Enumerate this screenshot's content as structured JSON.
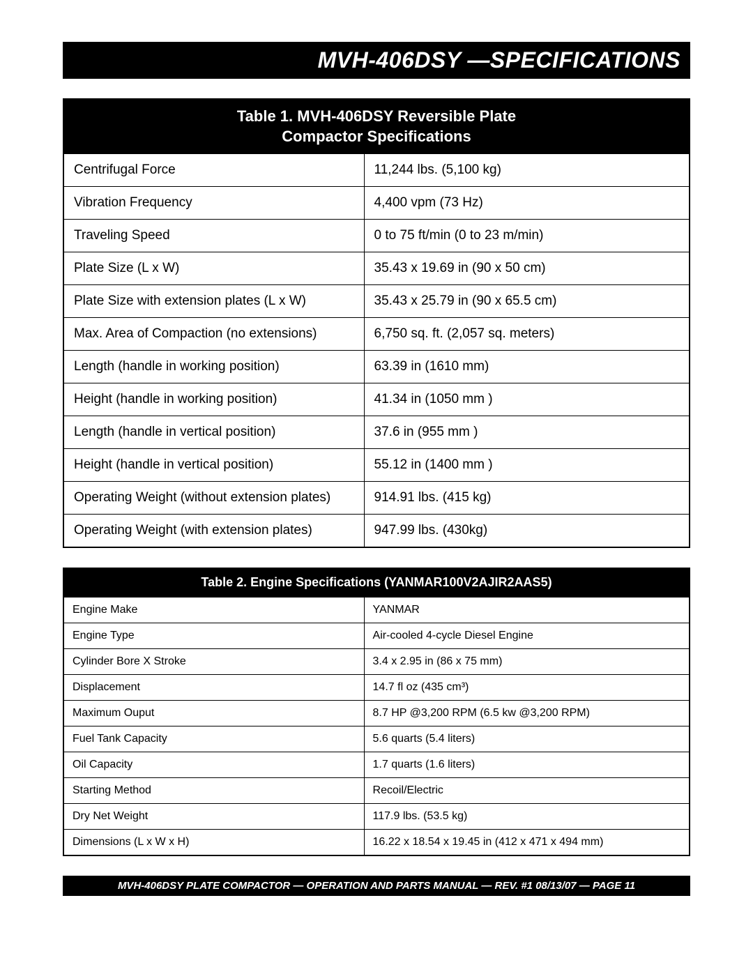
{
  "title": "MVH-406DSY —SPECIFICATIONS",
  "table1": {
    "title_line1": "Table 1. MVH-406DSY Reversible Plate",
    "title_line2": "Compactor Specifications",
    "rows": [
      {
        "label": "Centrifugal Force",
        "value": "11,244 lbs. (5,100 kg)"
      },
      {
        "label": "Vibration Frequency",
        "value": "4,400 vpm (73 Hz)"
      },
      {
        "label": "Traveling Speed",
        "value": "0 to 75 ft/min (0 to 23 m/min)"
      },
      {
        "label": "Plate Size (L x W)",
        "value": "35.43 x 19.69 in (90 x 50 cm)"
      },
      {
        "label": "Plate Size with extension plates (L x W)",
        "value": "35.43 x 25.79 in (90 x 65.5 cm)"
      },
      {
        "label": "Max. Area of Compaction (no extensions)",
        "value": "6,750 sq. ft. (2,057 sq. meters)"
      },
      {
        "label": "Length (handle in working position)",
        "value": "63.39 in (1610 mm)"
      },
      {
        "label": "Height (handle in working position)",
        "value": "41.34 in  (1050 mm )"
      },
      {
        "label": "Length (handle in vertical position)",
        "value": "37.6 in  (955 mm )"
      },
      {
        "label": "Height (handle in vertical position)",
        "value": "55.12 in  (1400 mm )"
      },
      {
        "label": "Operating Weight (without extension plates)",
        "value": "914.91 lbs. (415 kg)"
      },
      {
        "label": "Operating Weight (with extension plates)",
        "value": "947.99 lbs. (430kg)"
      }
    ]
  },
  "table2": {
    "title": "Table 2. Engine Specifications (YANMAR100V2AJIR2AAS5)",
    "rows": [
      {
        "label": "Engine Make",
        "value": "YANMAR"
      },
      {
        "label": "Engine Type",
        "value": "Air-cooled 4-cycle Diesel Engine"
      },
      {
        "label": "Cylinder Bore X Stroke",
        "value": " 3.4 x 2.95 in (86 x 75 mm)"
      },
      {
        "label": "Displacement",
        "value": "14.7 fl oz (435 cm³)"
      },
      {
        "label": "Maximum Ouput",
        "value": "8.7 HP @3,200 RPM (6.5 kw @3,200 RPM)"
      },
      {
        "label": "Fuel Tank Capacity",
        "value": "5.6 quarts (5.4 liters)"
      },
      {
        "label": "Oil Capacity",
        "value": "1.7 quarts (1.6 liters)"
      },
      {
        "label": "Starting Method",
        "value": "Recoil/Electric"
      },
      {
        "label": "Dry Net Weight",
        "value": "117.9 lbs. (53.5 kg)"
      },
      {
        "label": "Dimensions (L x W x H)",
        "value": "16.22 x 18.54 x 19.45 in (412 x 471 x 494 mm)"
      }
    ]
  },
  "footer": "MVH-406DSY PLATE COMPACTOR — OPERATION AND PARTS MANUAL — REV. #1  08/13/07 — PAGE 11"
}
